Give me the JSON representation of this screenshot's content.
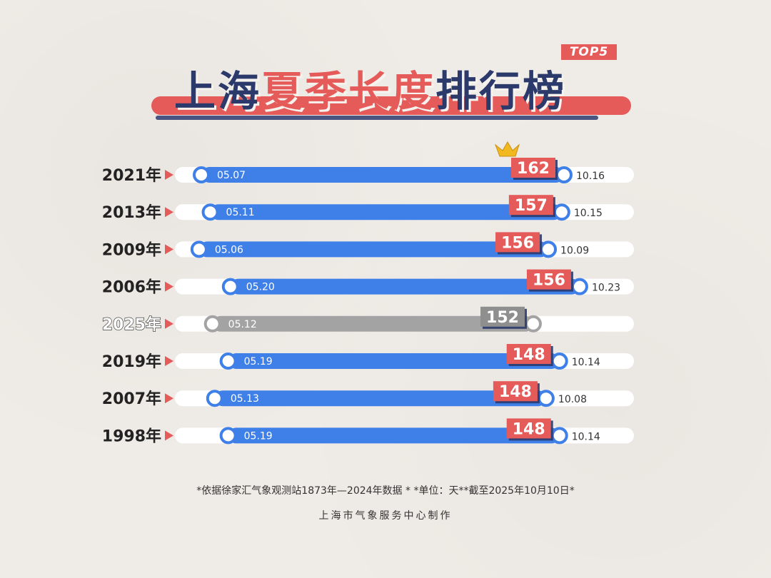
{
  "badge": "TOP5",
  "title": {
    "part1": "上海",
    "part2": "夏季长度",
    "part3": "排行榜"
  },
  "footer": {
    "note": "*依据徐家汇气象观测站1873年—2024年数据 * *单位：天**截至2025年10月10日*",
    "credit": "上海市气象服务中心制作"
  },
  "colors": {
    "bar": "#3e7fe8",
    "bar_current": "#a3a3a3",
    "track": "#ffffff",
    "label_box": "#e55b59",
    "title_blue": "#2b3a6a"
  },
  "chart_data": {
    "type": "bar",
    "orientation": "horizontal-range",
    "categories": [
      "2021年",
      "2013年",
      "2009年",
      "2006年",
      "2025年",
      "2019年",
      "2007年",
      "1998年"
    ],
    "start": [
      "05.07",
      "05.11",
      "05.06",
      "05.20",
      "05.12",
      "05.19",
      "05.13",
      "05.19"
    ],
    "end": [
      "10.16",
      "10.15",
      "10.09",
      "10.23",
      "",
      "10.14",
      "10.08",
      "10.14"
    ],
    "values": [
      162,
      157,
      156,
      156,
      152,
      148,
      148,
      148
    ],
    "highlight": "2025年",
    "crown": "2021年"
  }
}
